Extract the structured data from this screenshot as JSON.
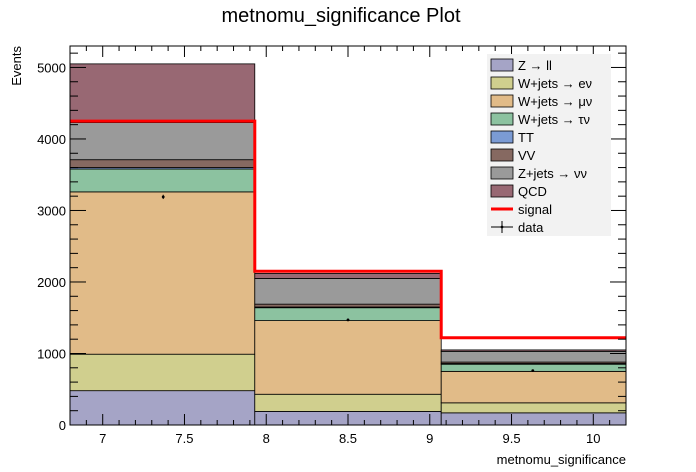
{
  "chart_data": {
    "type": "bar",
    "stacked": true,
    "title": "metnomu_significance Plot",
    "xlabel": "metnomu_significance",
    "ylabel": "Events",
    "xlim": [
      6.8,
      10.2
    ],
    "ylim": [
      0,
      5300
    ],
    "xticks": [
      7,
      7.5,
      8,
      8.5,
      9,
      9.5,
      10
    ],
    "xtick_labels": [
      "7",
      "7.5",
      "8",
      "8.5",
      "9",
      "9.5",
      "10"
    ],
    "yticks": [
      0,
      1000,
      2000,
      3000,
      4000,
      5000
    ],
    "ytick_labels": [
      "0",
      "1000",
      "2000",
      "3000",
      "4000",
      "5000"
    ],
    "bin_edges": [
      6.8,
      7.93,
      9.07,
      10.2
    ],
    "series": [
      {
        "name": "Z → ll",
        "color": "#a5a4c6",
        "values": [
          480,
          190,
          170
        ]
      },
      {
        "name": "W+jets → eν",
        "color": "#d0cf8e",
        "values": [
          510,
          240,
          140
        ]
      },
      {
        "name": "W+jets → μν",
        "color": "#e1bb88",
        "values": [
          2270,
          1030,
          440
        ]
      },
      {
        "name": "W+jets → τν",
        "color": "#8cc2a0",
        "values": [
          320,
          180,
          100
        ]
      },
      {
        "name": "TT",
        "color": "#7b9bd4",
        "values": [
          20,
          10,
          10
        ]
      },
      {
        "name": "VV",
        "color": "#866961",
        "values": [
          110,
          40,
          20
        ]
      },
      {
        "name": "Z+jets → νν",
        "color": "#9a9a9a",
        "values": [
          520,
          360,
          150
        ]
      },
      {
        "name": "QCD",
        "color": "#986873",
        "values": [
          820,
          70,
          20
        ]
      }
    ],
    "signal": {
      "name": "signal",
      "color": "#ff0000",
      "values": [
        4250,
        2150,
        1220
      ]
    },
    "data": {
      "name": "data",
      "x": [
        7.37,
        8.5,
        9.63
      ],
      "values": [
        3190,
        1470,
        760
      ],
      "errors": [
        30,
        20,
        15
      ]
    },
    "legend_position": "top-right",
    "grid": false
  }
}
